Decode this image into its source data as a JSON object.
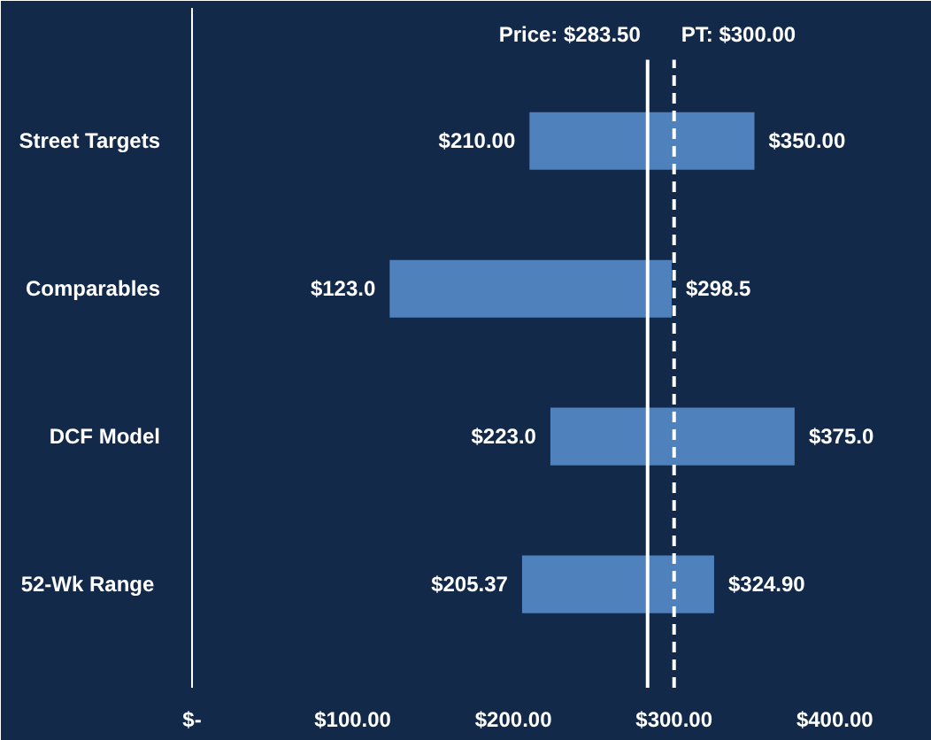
{
  "chart_data": {
    "type": "bar",
    "orientation": "horizontal",
    "categories": [
      "Street Targets",
      "Comparables",
      "DCF Model",
      "52-Wk  Range"
    ],
    "base": [
      210.0,
      123.0,
      223.0,
      205.37
    ],
    "values": [
      140.0,
      175.5,
      152.0,
      119.53
    ],
    "color": "#4f81bd",
    "xlim": [
      0,
      445
    ],
    "xticks": [
      {
        "value": 0,
        "label": "$-"
      },
      {
        "value": 100,
        "label": "$100.00"
      },
      {
        "value": 200,
        "label": "$200.00"
      },
      {
        "value": 300,
        "label": "$300.00"
      },
      {
        "value": 400,
        "label": "$400.00"
      }
    ],
    "grid": false,
    "ref_lines": [
      {
        "axis": "x",
        "value": 283.5,
        "label": "Price: $283.50",
        "color": "#ffffff",
        "line_style": "solid"
      },
      {
        "axis": "x",
        "value": 300,
        "label": "PT: $300.00",
        "color": "#ffffff",
        "line_style": "dashed"
      }
    ],
    "annotations": [
      {
        "text": "$210.00",
        "x": 210.0,
        "y": "Street Targets"
      },
      {
        "text": "$350.00",
        "x": 350.0,
        "y": "Street Targets"
      },
      {
        "text": "$123.0",
        "x": 123.0,
        "y": "Comparables"
      },
      {
        "text": "$298.5",
        "x": 298.5,
        "y": "Comparables"
      },
      {
        "text": "$223.0",
        "x": 223.0,
        "y": "DCF Model"
      },
      {
        "text": "$375.0",
        "x": 375.0,
        "y": "DCF Model"
      },
      {
        "text": "$205.37",
        "x": 205.37,
        "y": "52-Wk  Range"
      },
      {
        "text": "$324.90",
        "x": 324.9,
        "y": "52-Wk  Range"
      }
    ]
  }
}
